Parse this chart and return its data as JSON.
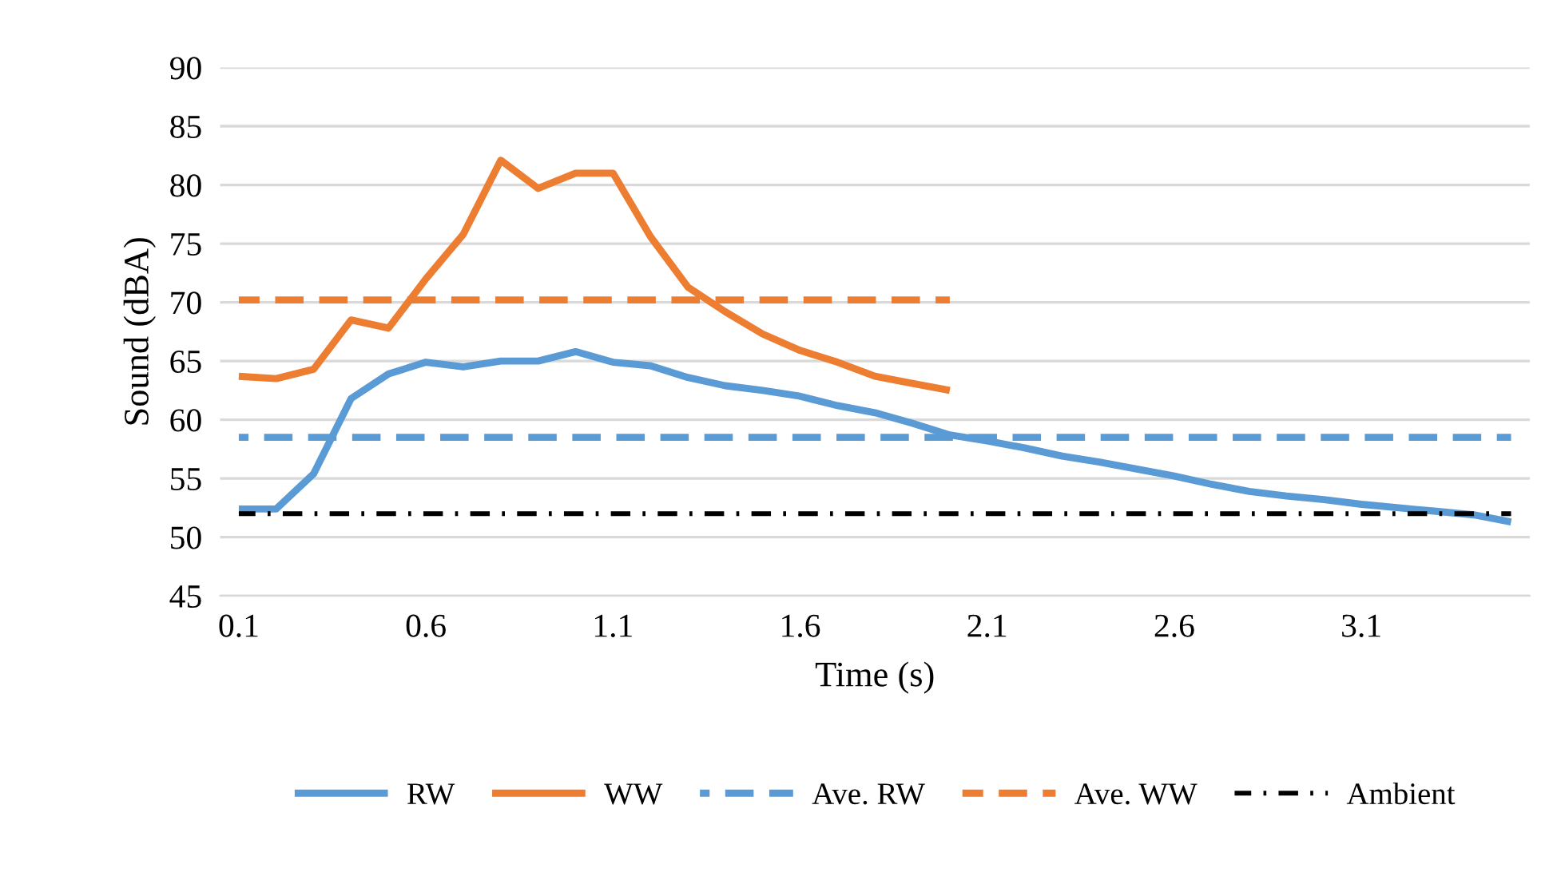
{
  "chart_data": {
    "type": "line",
    "xlabel": "Time (s)",
    "ylabel": "Sound (dBA)",
    "x": [
      0.1,
      0.2,
      0.3,
      0.4,
      0.5,
      0.6,
      0.7,
      0.8,
      0.9,
      1.0,
      1.1,
      1.2,
      1.3,
      1.4,
      1.5,
      1.6,
      1.7,
      1.8,
      1.9,
      2.0,
      2.1,
      2.2,
      2.3,
      2.4,
      2.5,
      2.6,
      2.7,
      2.8,
      2.9,
      3.0,
      3.1,
      3.2,
      3.3,
      3.4,
      3.5
    ],
    "xlim": [
      0.05,
      3.55
    ],
    "xticks": [
      0.1,
      0.6,
      1.1,
      1.6,
      2.1,
      2.6,
      3.1
    ],
    "ylim": [
      45,
      90
    ],
    "yticks": [
      45,
      50,
      55,
      60,
      65,
      70,
      75,
      80,
      85,
      90
    ],
    "grid": "y",
    "legend": "bottom",
    "marker": "none",
    "series": [
      {
        "name": "RW",
        "color": "#5b9bd5",
        "line_style": "solid",
        "values": [
          52.4,
          52.4,
          55.4,
          61.8,
          63.9,
          64.9,
          64.5,
          65.0,
          65.0,
          65.8,
          64.9,
          64.6,
          63.6,
          62.9,
          62.5,
          62.0,
          61.2,
          60.6,
          59.7,
          58.7,
          58.2,
          57.6,
          56.9,
          56.4,
          55.8,
          55.2,
          54.5,
          53.9,
          53.5,
          53.2,
          52.8,
          52.5,
          52.2,
          51.9,
          51.3
        ]
      },
      {
        "name": "WW",
        "color": "#ed7d31",
        "line_style": "solid",
        "values": [
          63.7,
          63.5,
          64.3,
          68.5,
          67.8,
          72.0,
          75.8,
          82.1,
          79.7,
          81.0,
          81.0,
          75.6,
          71.3,
          69.2,
          67.3,
          65.9,
          64.9,
          63.7,
          63.1,
          62.5,
          null,
          null,
          null,
          null,
          null,
          null,
          null,
          null,
          null,
          null,
          null,
          null,
          null,
          null,
          null
        ]
      },
      {
        "name": "Ave. RW",
        "color": "#5b9bd5",
        "line_style": "dashed",
        "values": [
          58.5,
          58.5,
          58.5,
          58.5,
          58.5,
          58.5,
          58.5,
          58.5,
          58.5,
          58.5,
          58.5,
          58.5,
          58.5,
          58.5,
          58.5,
          58.5,
          58.5,
          58.5,
          58.5,
          58.5,
          58.5,
          58.5,
          58.5,
          58.5,
          58.5,
          58.5,
          58.5,
          58.5,
          58.5,
          58.5,
          58.5,
          58.5,
          58.5,
          58.5,
          58.5
        ]
      },
      {
        "name": "Ave. WW",
        "color": "#ed7d31",
        "line_style": "dashed",
        "values": [
          70.2,
          70.2,
          70.2,
          70.2,
          70.2,
          70.2,
          70.2,
          70.2,
          70.2,
          70.2,
          70.2,
          70.2,
          70.2,
          70.2,
          70.2,
          70.2,
          70.2,
          70.2,
          70.2,
          70.2,
          null,
          null,
          null,
          null,
          null,
          null,
          null,
          null,
          null,
          null,
          null,
          null,
          null,
          null,
          null
        ]
      },
      {
        "name": "Ambient",
        "color": "#000000",
        "line_style": "dashdot",
        "values": [
          52,
          52,
          52,
          52,
          52,
          52,
          52,
          52,
          52,
          52,
          52,
          52,
          52,
          52,
          52,
          52,
          52,
          52,
          52,
          52,
          52,
          52,
          52,
          52,
          52,
          52,
          52,
          52,
          52,
          52,
          52,
          52,
          52,
          52,
          52
        ]
      }
    ]
  }
}
